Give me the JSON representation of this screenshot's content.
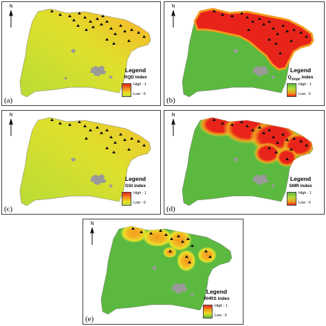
{
  "panels": [
    {
      "label": "(a)",
      "legend_title": "Legend",
      "index_name": "RQD index",
      "index_sub": "",
      "index_suffix": "",
      "high": "High : 1",
      "low": "Low : 0",
      "scheme": "rqd"
    },
    {
      "label": "(b)",
      "legend_title": "Legend",
      "index_name": "Q",
      "index_sub": "slope",
      "index_suffix": " index",
      "high": "High : 1",
      "low": "Low : 0",
      "scheme": "qslope"
    },
    {
      "label": "(c)",
      "legend_title": "Legend",
      "index_name": "GSI index",
      "index_sub": "",
      "index_suffix": "",
      "high": "High : 1",
      "low": "Low : 0",
      "scheme": "gsi"
    },
    {
      "label": "(d)",
      "legend_title": "Legend",
      "index_name": "SMR index",
      "index_sub": "",
      "index_suffix": "",
      "high": "High : 1",
      "low": "Low : 0",
      "scheme": "smr"
    },
    {
      "label": "(e)",
      "legend_title": "Legend",
      "index_name": "RHRS index",
      "index_sub": "",
      "index_suffix": "",
      "high": "High : 1",
      "low": "Low : 0",
      "scheme": "rhrs"
    }
  ],
  "north_label": "N",
  "colors": {
    "high_red": "#e8241a",
    "orange": "#f39a1e",
    "yellow": "#e8e22a",
    "yellow_green": "#b8dc36",
    "green": "#5cb940",
    "urban_gray": "#9a9a9a",
    "marker": "#111111"
  },
  "icons": {
    "landslide_marker": "triangle-icon",
    "north": "north-arrow-icon"
  }
}
